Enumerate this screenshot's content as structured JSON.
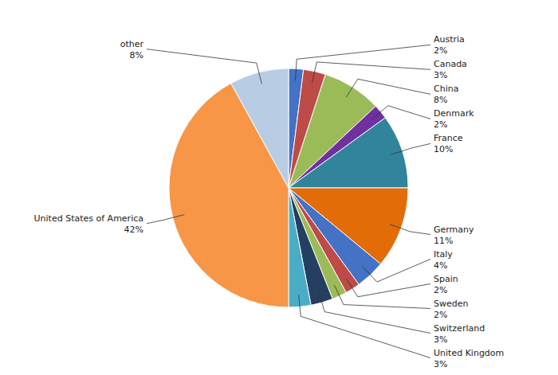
{
  "chart_data": {
    "type": "pie",
    "categories": [
      "Austria",
      "Canada",
      "China",
      "Denmark",
      "France",
      "Germany",
      "Italy",
      "Spain",
      "Sweden",
      "Switzerland",
      "United Kingdom",
      "United States of America",
      "other"
    ],
    "values": [
      2,
      3,
      8,
      2,
      10,
      11,
      4,
      2,
      2,
      3,
      3,
      42,
      8
    ],
    "value_labels": [
      "2%",
      "3%",
      "8%",
      "2%",
      "10%",
      "11%",
      "4%",
      "2%",
      "2%",
      "3%",
      "3%",
      "42%",
      "8%"
    ],
    "colors": [
      "#4472C4",
      "#BE4B48",
      "#9BBB59",
      "#7030A0",
      "#31849B",
      "#E36C09",
      "#4472C4",
      "#BE4B48",
      "#9BBB59",
      "#243F60",
      "#4BACC6",
      "#F79646",
      "#B8CCE4"
    ],
    "data_labels": true
  }
}
